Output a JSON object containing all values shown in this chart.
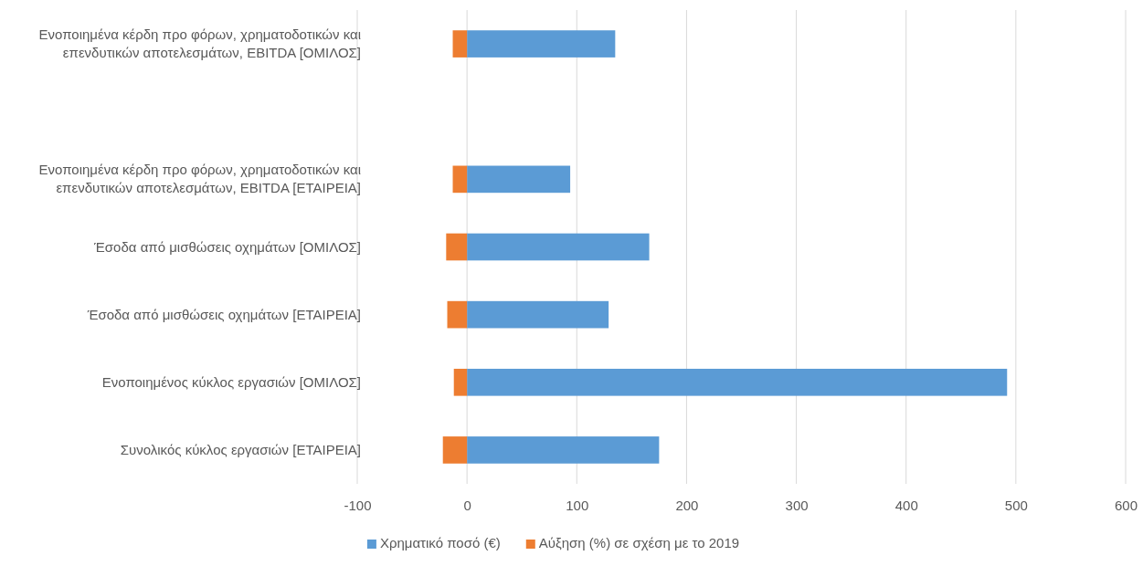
{
  "chart_data": {
    "type": "bar",
    "orientation": "horizontal",
    "stacked": true,
    "categories": [
      "Ενοποιημένα κέρδη προ φόρων, χρηματοδοτικών και επενδυτικών αποτελεσμάτων, EBITDA [ΟΜΙΛΟΣ]",
      null,
      "Ενοποιημένα κέρδη προ φόρων, χρηματοδοτικών και επενδυτικών αποτελεσμάτων, EBITDA [ΕΤΑΙΡΕΙΑ]",
      "Έσοδα από μισθώσεις οχημάτων [ΟΜΙΛΟΣ]",
      "Έσοδα από μισθώσεις οχημάτων [ΕΤΑΙΡΕΙΑ]",
      "Ενοποιημένος κύκλος εργασιών [ΟΜΙΛΟΣ]",
      "Συνολικός κύκλος εργασιών [ΕΤΑΙΡΕΙΑ]"
    ],
    "series": [
      {
        "name": "Χρηματικό ποσό (€)",
        "color": "#5b9bd5",
        "values": [
          135,
          null,
          94,
          166,
          129,
          492,
          175
        ]
      },
      {
        "name": "Αύξηση (%) σε σχέση με το 2019",
        "color": "#ed7d31",
        "values": [
          -13,
          null,
          -13,
          -19,
          -18,
          -12,
          -22
        ]
      }
    ],
    "xlim": [
      -100,
      600
    ],
    "xticks": [
      -100,
      0,
      100,
      200,
      300,
      400,
      500,
      600
    ],
    "grid": "x",
    "legend": "bottom"
  }
}
